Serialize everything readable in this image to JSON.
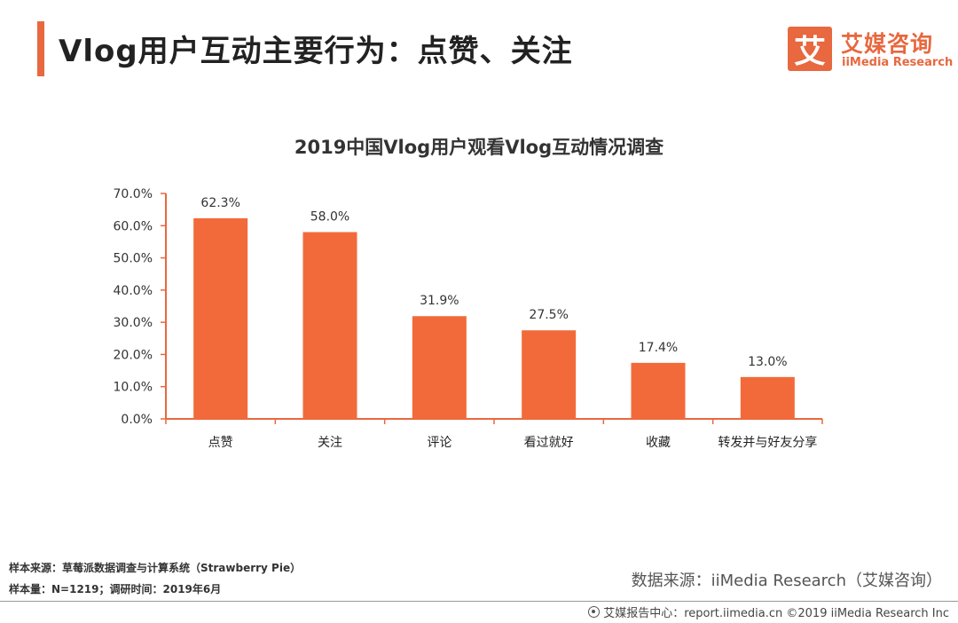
{
  "header": {
    "title": "Vlog用户互动主要行为：点赞、关注",
    "logo_mark": "艾",
    "logo_cn": "艾媒咨询",
    "logo_en": "iiMedia Research"
  },
  "footer": {
    "sample_source": "样本来源：草莓派数据调查与计算系统（Strawberry Pie）",
    "sample_size": "样本量：N=1219；调研时间：2019年6月",
    "data_source": "数据来源：iiMedia Research（艾媒咨询）",
    "credit": "艾媒报告中心：report.iimedia.cn  ©2019  iiMedia Research  Inc"
  },
  "colors": {
    "accent": "#e8683f",
    "bar": "#f26a3a",
    "axis": "#e8683f"
  },
  "chart_data": {
    "type": "bar",
    "title": "2019中国Vlog用户观看Vlog互动情况调查",
    "xlabel": "",
    "ylabel": "",
    "categories": [
      "点赞",
      "关注",
      "评论",
      "看过就好",
      "收藏",
      "转发并与好友分享"
    ],
    "values": [
      62.3,
      58.0,
      31.9,
      27.5,
      17.4,
      13.0
    ],
    "value_labels": [
      "62.3%",
      "58.0%",
      "31.9%",
      "27.5%",
      "17.4%",
      "13.0%"
    ],
    "ylim": [
      0,
      70
    ],
    "yticks": [
      "0.0%",
      "10.0%",
      "20.0%",
      "30.0%",
      "40.0%",
      "50.0%",
      "60.0%",
      "70.0%"
    ],
    "grid": false,
    "legend": "none"
  }
}
